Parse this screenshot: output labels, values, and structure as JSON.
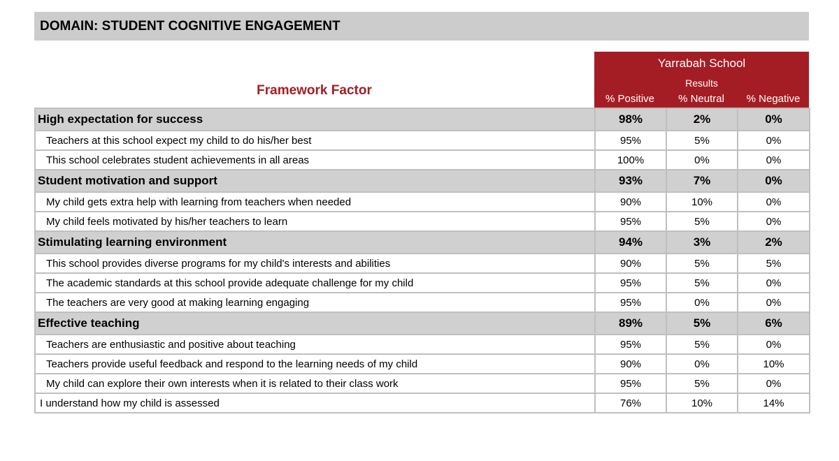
{
  "domain_title": "DOMAIN: STUDENT COGNITIVE ENGAGEMENT",
  "header": {
    "framework_factor": "Framework Factor",
    "school_name": "Yarrabah School",
    "results_label": "Results",
    "columns": [
      "% Positive",
      "% Neutral",
      "% Negative"
    ]
  },
  "colors": {
    "accent": "#a51d24",
    "header_gray": "#cccccc",
    "factor_row": "#d0d0d0"
  },
  "factors": [
    {
      "name": "High expectation for success",
      "positive": "98%",
      "neutral": "2%",
      "negative": "0%",
      "items": [
        {
          "text": "Teachers at this school expect my child to do his/her best",
          "positive": "95%",
          "neutral": "5%",
          "negative": "0%"
        },
        {
          "text": "This school celebrates student achievements in all areas",
          "positive": "100%",
          "neutral": "0%",
          "negative": "0%"
        }
      ]
    },
    {
      "name": "Student motivation and support",
      "positive": "93%",
      "neutral": "7%",
      "negative": "0%",
      "items": [
        {
          "text": "My child gets extra help with learning from teachers when needed",
          "positive": "90%",
          "neutral": "10%",
          "negative": "0%"
        },
        {
          "text": "My child feels motivated by his/her teachers to learn",
          "positive": "95%",
          "neutral": "5%",
          "negative": "0%"
        }
      ]
    },
    {
      "name": "Stimulating learning environment",
      "positive": "94%",
      "neutral": "3%",
      "negative": "2%",
      "items": [
        {
          "text": "This school provides diverse programs for my child's interests and abilities",
          "positive": "90%",
          "neutral": "5%",
          "negative": "5%"
        },
        {
          "text": "The academic standards at this school provide adequate challenge for my child",
          "positive": "95%",
          "neutral": "5%",
          "negative": "0%"
        },
        {
          "text": "The teachers are very good at making learning engaging",
          "positive": "95%",
          "neutral": "0%",
          "negative": "0%"
        }
      ]
    },
    {
      "name": "Effective teaching",
      "positive": "89%",
      "neutral": "5%",
      "negative": "6%",
      "items": [
        {
          "text": "Teachers are enthusiastic and positive about teaching",
          "positive": "95%",
          "neutral": "5%",
          "negative": "0%"
        },
        {
          "text": "Teachers provide useful feedback and respond to the learning needs of my child",
          "positive": "90%",
          "neutral": "0%",
          "negative": "10%"
        },
        {
          "text": "My child can explore their own interests when it is related to their class work",
          "positive": "95%",
          "neutral": "5%",
          "negative": "0%"
        },
        {
          "text": "I understand how my child is assessed",
          "positive": "76%",
          "neutral": "10%",
          "negative": "14%"
        }
      ]
    }
  ]
}
